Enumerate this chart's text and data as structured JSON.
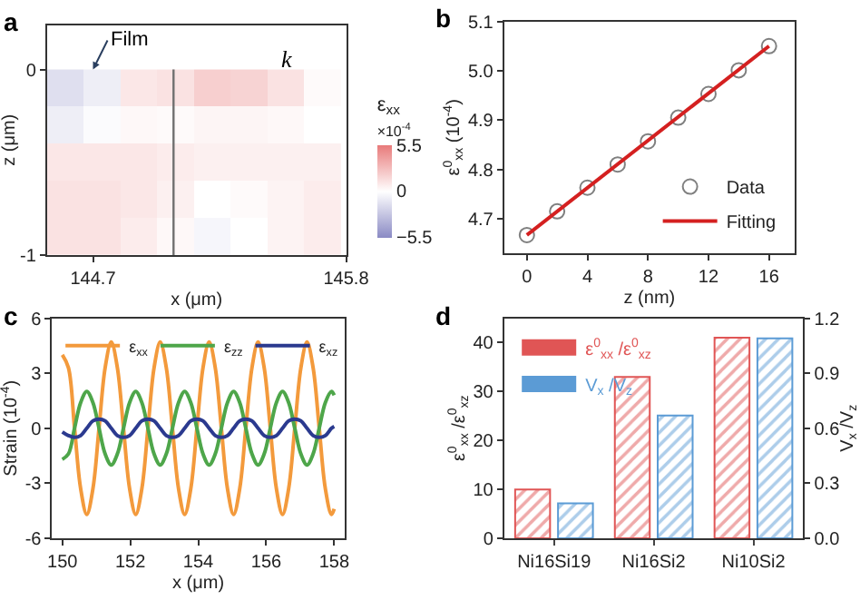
{
  "chart_data": [
    {
      "type": "heatmap",
      "title": "a",
      "xlabel": "x (μm)",
      "ylabel": "z (μm)",
      "clabel": "ε$_{xx}$",
      "x": [
        144.58,
        144.74,
        144.9,
        145.06,
        145.22,
        145.38,
        145.54,
        145.7
      ],
      "y": [
        -0.1,
        -0.3,
        -0.5,
        -0.7,
        -0.9
      ],
      "cells": [
        [
          -1.5,
          -0.8,
          1.0,
          1.2,
          2.0,
          1.8,
          1.2,
          0.2
        ],
        [
          -0.8,
          -0.2,
          0.3,
          0.2,
          0.4,
          0.4,
          0.3,
          0.0
        ],
        [
          1.0,
          1.0,
          1.0,
          0.8,
          0.6,
          0.6,
          0.6,
          0.6
        ],
        [
          1.2,
          1.2,
          1.0,
          0.6,
          0.0,
          0.2,
          0.5,
          0.8
        ],
        [
          1.2,
          1.2,
          0.8,
          0.3,
          -0.4,
          0.0,
          0.5,
          0.8
        ]
      ],
      "clim": [
        -5.5,
        5.5
      ],
      "cticks": [
        {
          "value": -5.5,
          "label": "−5.5"
        },
        0,
        5.5
      ],
      "xlim": [
        144.5,
        145.8
      ],
      "xticks": [
        144.7,
        145.8
      ],
      "ylim": [
        -1,
        0.24
      ],
      "yticks": [
        0,
        -1
      ],
      "ref_lines": [
        {
          "axis": "x",
          "value": 145.05,
          "color": "#707070"
        }
      ],
      "annotations": [
        "×10$^{-4}$",
        "Film",
        "k"
      ],
      "legend": false
    },
    {
      "type": "scatter",
      "title": "b",
      "xlabel": "z (nm)",
      "ylabel": "ε$^{0}$$_{xx}$ (10$^{-4}$)",
      "xlim": [
        -1.5,
        17.7
      ],
      "xticks": [
        0,
        4,
        8,
        12,
        16
      ],
      "ylim": [
        4.63,
        5.1
      ],
      "yticks": [
        4.7,
        4.8,
        4.9,
        {
          "value": 5.0,
          "label": "5.0"
        },
        5.1
      ],
      "series": [
        {
          "name": "Data",
          "type": "scatter",
          "marker": "circle",
          "color": "#808080",
          "x": [
            0,
            2,
            4,
            6,
            8,
            10,
            12,
            14,
            16
          ],
          "values": [
            4.667,
            4.715,
            4.763,
            4.81,
            4.857,
            4.905,
            4.953,
            5.001,
            5.05
          ]
        },
        {
          "name": "Fitting",
          "type": "line",
          "color": "#d42020",
          "x": [
            0,
            16
          ],
          "values": [
            4.667,
            5.05
          ]
        }
      ],
      "legend": "bottom right"
    },
    {
      "type": "line",
      "title": "c",
      "xlabel": "x (μm)",
      "ylabel": "Strain (10$^{-4}$)",
      "x": [
        150,
        150.18,
        150.36,
        150.54,
        150.72,
        150.9,
        151.08,
        151.26,
        151.44,
        151.62,
        151.8,
        151.98,
        152.16,
        152.34,
        152.52,
        152.7,
        152.88,
        153.06,
        153.24,
        153.42,
        153.6,
        153.78,
        153.96,
        154.14,
        154.32,
        154.5,
        154.68,
        154.86,
        155.04,
        155.22,
        155.4,
        155.58,
        155.76,
        155.94,
        156.12,
        156.3,
        156.48,
        156.66,
        156.84,
        157.02,
        157.2,
        157.38,
        157.56,
        157.74,
        157.92,
        158
      ],
      "xlim": [
        149.7,
        158.3
      ],
      "xticks": [
        150,
        152,
        154,
        156,
        158
      ],
      "ylim": [
        -6,
        6
      ],
      "yticks": [
        -6,
        -3,
        0,
        3,
        6
      ],
      "series": [
        {
          "name": "ε$_{xx}$",
          "color": "#f39a3c",
          "values": [
            4.0,
            3.3,
            0,
            -3.3,
            -4.7,
            -3.3,
            0,
            3.3,
            4.7,
            3.3,
            0,
            -3.3,
            -4.7,
            -3.3,
            0,
            3.3,
            4.7,
            3.3,
            0,
            -3.3,
            -4.7,
            -3.3,
            0,
            3.3,
            4.7,
            3.3,
            0,
            -3.3,
            -4.7,
            -3.3,
            0,
            3.3,
            4.7,
            3.3,
            0,
            -3.3,
            -4.7,
            -3.3,
            0,
            3.3,
            4.7,
            3.3,
            0,
            -3.3,
            -4.7,
            -4.4
          ]
        },
        {
          "name": "ε$_{zz}$",
          "color": "#4ea64a",
          "values": [
            -1.7,
            -1.4,
            0,
            1.4,
            2,
            1.4,
            0,
            -1.4,
            -2,
            -1.4,
            0,
            1.4,
            2,
            1.4,
            0,
            -1.4,
            -2,
            -1.4,
            0,
            1.4,
            2,
            1.4,
            0,
            -1.4,
            -2,
            -1.4,
            0,
            1.4,
            2,
            1.4,
            0,
            -1.4,
            -2,
            -1.4,
            0,
            1.4,
            2,
            1.4,
            0,
            -1.4,
            -2,
            -1.4,
            0,
            1.4,
            2,
            1.8
          ]
        },
        {
          "name": "ε$_{xz}$",
          "color": "#2b3a8f",
          "values": [
            -0.2,
            -0.4,
            -0.5,
            -0.4,
            0,
            0.4,
            0.5,
            0.4,
            0,
            -0.4,
            -0.5,
            -0.4,
            0,
            0.4,
            0.5,
            0.4,
            0,
            -0.4,
            -0.5,
            -0.4,
            0,
            0.4,
            0.5,
            0.4,
            0,
            -0.4,
            -0.5,
            -0.4,
            0,
            0.4,
            0.5,
            0.4,
            0,
            -0.4,
            -0.5,
            -0.4,
            0,
            0.4,
            0.5,
            0.4,
            0,
            -0.4,
            -0.5,
            -0.4,
            0,
            0.1
          ]
        }
      ],
      "marker": "none",
      "line_style": "solid",
      "legend": "top"
    },
    {
      "type": "bar",
      "title": "d",
      "ylabel": "ε$^{0}$$_{xx}$ /ε$^{0}$$_{xz}$",
      "y2label": "V$_{x}$ /V$_{z}$",
      "categories": [
        "Ni16Si19",
        "Ni16Si2",
        "Ni10Si2"
      ],
      "ylim": [
        0,
        45
      ],
      "yticks": [
        0,
        10,
        20,
        30,
        40
      ],
      "y2lim": [
        0,
        1.2
      ],
      "y2ticks": [
        {
          "value": 0.0,
          "label": "0.0"
        },
        0.3,
        0.6,
        0.9,
        1.2
      ],
      "series": [
        {
          "name": "ε$^{0}$$_{xx}$ /ε$^{0}$$_{xz}$",
          "color": "#e05555",
          "values": [
            10,
            33,
            41
          ]
        },
        {
          "name": "V$_{x}$ /V$_{z}$",
          "color": "#5b9bd5",
          "axis": "y2",
          "values": [
            0.19,
            0.67,
            1.09
          ]
        }
      ],
      "legend": "top left"
    }
  ]
}
